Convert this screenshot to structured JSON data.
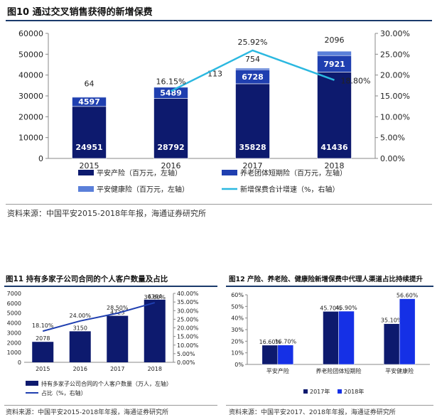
{
  "figure10": {
    "title": "图10 通过交叉销售获得的新增保费",
    "source": "资料来源：中国平安2015-2018年年报，海通证券研究所"
  },
  "figure11": {
    "title": "图11 持有多家子公司合同的个人客户数量及占比",
    "source": "资料来源：中国平安2015-2018年年报，海通证券研究所"
  },
  "figure12": {
    "title": "图12 产险、养老险、健康险新增保费中代理人渠道占比持续提升",
    "source": "资料来源：中国平安2017、2018年年报，海通证券研究所"
  },
  "chart_data": [
    {
      "type": "bar",
      "stacked": true,
      "categories": [
        "2015",
        "2016",
        "2017",
        "2018"
      ],
      "series": [
        {
          "name": "平安产险（百万元，左轴）",
          "values": [
            24951,
            28792,
            35828,
            41436
          ],
          "color": "#0d1a6e"
        },
        {
          "name": "养老团体短期险（百万元，左轴）",
          "values": [
            4597,
            5489,
            6728,
            7921
          ],
          "color": "#1f3fb0"
        },
        {
          "name": "平安健康险（百万元，左轴）",
          "values": [
            64,
            113,
            754,
            2096
          ],
          "color": "#5a7fd9"
        }
      ],
      "line": {
        "name": "新增保费合计增速（%，右轴）",
        "x": [
          "2016",
          "2017",
          "2018"
        ],
        "values": [
          16.15,
          25.92,
          18.8
        ],
        "labels": [
          "16.15%",
          "25.92%",
          "18.80%"
        ],
        "color": "#2bb8e0"
      },
      "ylim": [
        0,
        60000
      ],
      "yticks": [
        "0",
        "10000",
        "20000",
        "30000",
        "40000",
        "50000",
        "60000"
      ],
      "y2lim": [
        0,
        30
      ],
      "y2ticks": [
        "0.00%",
        "5.00%",
        "10.00%",
        "15.00%",
        "20.00%",
        "25.00%",
        "30.00%"
      ],
      "legend_position": "bottom"
    },
    {
      "type": "bar",
      "categories": [
        "2015",
        "2016",
        "2017",
        "2018"
      ],
      "series": [
        {
          "name": "持有多家子公司合同的个人客户数量（万人，左轴）",
          "values": [
            2078,
            3150,
            4723,
            6364
          ],
          "color": "#0d1a6e"
        }
      ],
      "line": {
        "name": "占比（%，右轴）",
        "values": [
          18.1,
          24.0,
          28.5,
          34.6
        ],
        "labels": [
          "18.10%",
          "24.00%",
          "28.50%",
          "34.60%"
        ],
        "color": "#1f3fb0"
      },
      "ylim": [
        0,
        7000
      ],
      "yticks": [
        "0",
        "1000",
        "2000",
        "3000",
        "4000",
        "5000",
        "6000",
        "7000"
      ],
      "y2lim": [
        0,
        40
      ],
      "y2ticks": [
        "0.00%",
        "5.00%",
        "10.00%",
        "15.00%",
        "20.00%",
        "25.00%",
        "30.00%",
        "35.00%",
        "40.00%"
      ],
      "legend_position": "bottom"
    },
    {
      "type": "bar",
      "categories": [
        "平安产险",
        "养老险团体短期险",
        "平安健康险"
      ],
      "series": [
        {
          "name": "2017年",
          "values": [
            16.6,
            45.7,
            35.1
          ],
          "labels": [
            "16.60%",
            "45.70%",
            "35.10%"
          ],
          "color": "#0d1a6e"
        },
        {
          "name": "2018年",
          "values": [
            16.7,
            45.9,
            56.6
          ],
          "labels": [
            "16.70%",
            "45.90%",
            "56.60%"
          ],
          "color": "#1530e6"
        }
      ],
      "ylim": [
        0,
        60
      ],
      "yticks": [
        "0%",
        "10%",
        "20%",
        "30%",
        "40%",
        "50%",
        "60%"
      ],
      "legend_position": "bottom"
    }
  ]
}
